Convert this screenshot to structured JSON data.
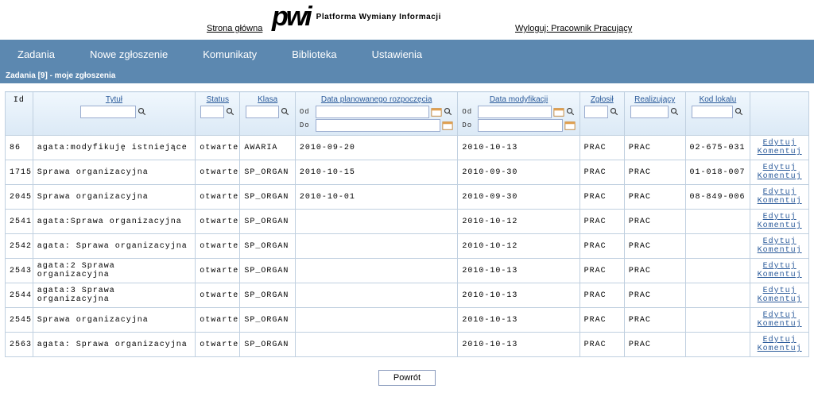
{
  "header": {
    "home_link": "Strona główna",
    "logo_main": "pwi",
    "logo_sub": "Platforma Wymiany Informacji",
    "logout_link": "Wyloguj: Pracownik Pracujący"
  },
  "nav": {
    "items": [
      "Zadania",
      "Nowe zgłoszenie",
      "Komunikaty",
      "Biblioteka",
      "Ustawienia"
    ]
  },
  "panel_title": "Zadania [9] - moje zgłoszenia",
  "columns": {
    "id": "Id",
    "tytul": "Tytuł",
    "status": "Status",
    "klasa": "Klasa",
    "data_plan": "Data planowanego rozpoczęcia",
    "od": "Od",
    "do": "Do",
    "data_mod": "Data modyfikacji",
    "zglosil": "Zgłosił",
    "realizujacy": "Realizujący",
    "kod_lokalu": "Kod lokalu"
  },
  "actions": {
    "edytuj": "Edytuj",
    "komentuj": "Komentuj"
  },
  "rows": [
    {
      "id": "86",
      "tytul": "agata:modyfikuję istniejące",
      "status": "otwarte",
      "klasa": "AWARIA",
      "data_plan": "2010-09-20",
      "data_mod": "2010-10-13",
      "zglosil": "PRAC",
      "realizujacy": "PRAC",
      "kod": "02-675-031"
    },
    {
      "id": "1715",
      "tytul": "Sprawa organizacyjna",
      "status": "otwarte",
      "klasa": "SP_ORGAN",
      "data_plan": "2010-10-15",
      "data_mod": "2010-09-30",
      "zglosil": "PRAC",
      "realizujacy": "PRAC",
      "kod": "01-018-007"
    },
    {
      "id": "2045",
      "tytul": "Sprawa organizacyjna",
      "status": "otwarte",
      "klasa": "SP_ORGAN",
      "data_plan": "2010-10-01",
      "data_mod": "2010-09-30",
      "zglosil": "PRAC",
      "realizujacy": "PRAC",
      "kod": "08-849-006"
    },
    {
      "id": "2541",
      "tytul": "agata:Sprawa organizacyjna",
      "status": "otwarte",
      "klasa": "SP_ORGAN",
      "data_plan": "",
      "data_mod": "2010-10-12",
      "zglosil": "PRAC",
      "realizujacy": "PRAC",
      "kod": ""
    },
    {
      "id": "2542",
      "tytul": "agata: Sprawa organizacyjna",
      "status": "otwarte",
      "klasa": "SP_ORGAN",
      "data_plan": "",
      "data_mod": "2010-10-12",
      "zglosil": "PRAC",
      "realizujacy": "PRAC",
      "kod": ""
    },
    {
      "id": "2543",
      "tytul": "agata:2 Sprawa organizacyjna",
      "status": "otwarte",
      "klasa": "SP_ORGAN",
      "data_plan": "",
      "data_mod": "2010-10-13",
      "zglosil": "PRAC",
      "realizujacy": "PRAC",
      "kod": ""
    },
    {
      "id": "2544",
      "tytul": "agata:3 Sprawa organizacyjna",
      "status": "otwarte",
      "klasa": "SP_ORGAN",
      "data_plan": "",
      "data_mod": "2010-10-13",
      "zglosil": "PRAC",
      "realizujacy": "PRAC",
      "kod": ""
    },
    {
      "id": "2545",
      "tytul": "Sprawa organizacyjna",
      "status": "otwarte",
      "klasa": "SP_ORGAN",
      "data_plan": "",
      "data_mod": "2010-10-13",
      "zglosil": "PRAC",
      "realizujacy": "PRAC",
      "kod": ""
    },
    {
      "id": "2563",
      "tytul": "agata: Sprawa organizacyjna",
      "status": "otwarte",
      "klasa": "SP_ORGAN",
      "data_plan": "",
      "data_mod": "2010-10-13",
      "zglosil": "PRAC",
      "realizujacy": "PRAC",
      "kod": ""
    }
  ],
  "footer": {
    "back": "Powrót"
  }
}
